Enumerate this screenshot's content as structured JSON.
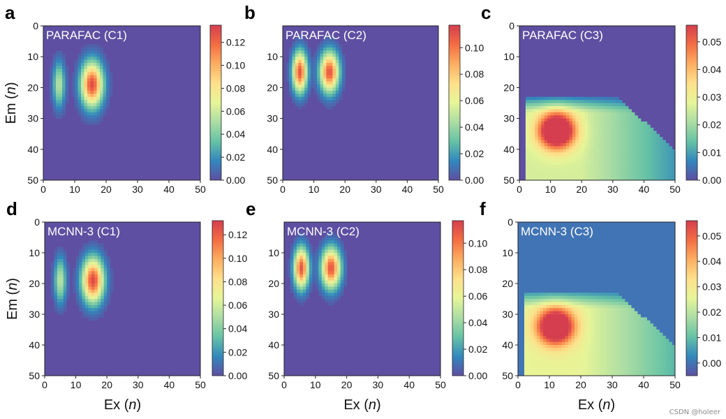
{
  "palette": [
    "#5e4fa2",
    "#3288bd",
    "#66c2a5",
    "#abdda4",
    "#e6f598",
    "#fee08b",
    "#fdae61",
    "#f46d43",
    "#d53e4f"
  ],
  "background_value_color": "#5e4fa2",
  "watermark": "CSDN @holeer",
  "chart_data": [
    {
      "type": "heatmap",
      "panel_label": "a",
      "title": "PARAFAC (C1)",
      "xlabel": "",
      "ylabel": "Em",
      "ylabel_var": "n",
      "xlim": [
        0,
        50
      ],
      "ylim": [
        0,
        50
      ],
      "x_ticks": [
        "0",
        "10",
        "20",
        "30",
        "40",
        "50"
      ],
      "y_ticks": [
        "0",
        "10",
        "20",
        "30",
        "40",
        "50"
      ],
      "colorbar": {
        "vmin": 0.0,
        "vmax": 0.135,
        "ticks": [
          "0.00",
          "0.02",
          "0.04",
          "0.06",
          "0.08",
          "0.10",
          "0.12"
        ]
      },
      "peaks": [
        {
          "ex": 5,
          "em": 19,
          "sx": 1.3,
          "sy": 5,
          "amp": 0.055
        },
        {
          "ex": 15.5,
          "em": 19,
          "sx": 2.4,
          "sy": 5,
          "amp": 0.13
        }
      ]
    },
    {
      "type": "heatmap",
      "panel_label": "b",
      "title": "PARAFAC (C2)",
      "xlabel": "",
      "ylabel": "",
      "ylabel_var": "",
      "xlim": [
        0,
        50
      ],
      "ylim": [
        0,
        50
      ],
      "x_ticks": [
        "0",
        "10",
        "20",
        "30",
        "40",
        "50"
      ],
      "y_ticks": [
        "10",
        "20",
        "30",
        "40",
        "50"
      ],
      "colorbar": {
        "vmin": 0.0,
        "vmax": 0.117,
        "ticks": [
          "0.00",
          "0.02",
          "0.04",
          "0.06",
          "0.08",
          "0.10"
        ]
      },
      "peaks": [
        {
          "ex": 5.5,
          "em": 15,
          "sx": 1.6,
          "sy": 4.5,
          "amp": 0.11
        },
        {
          "ex": 15,
          "em": 15,
          "sx": 2.1,
          "sy": 4.5,
          "amp": 0.11
        }
      ]
    },
    {
      "type": "heatmap",
      "panel_label": "c",
      "title": "PARAFAC (C3)",
      "xlabel": "",
      "ylabel": "",
      "ylabel_var": "",
      "xlim": [
        0,
        50
      ],
      "ylim": [
        0,
        50
      ],
      "x_ticks": [
        "0",
        "10",
        "20",
        "30",
        "40",
        "50"
      ],
      "y_ticks": [
        "0",
        "10",
        "20",
        "30",
        "40",
        "50"
      ],
      "colorbar": {
        "vmin": 0.0,
        "vmax": 0.056,
        "ticks": [
          "0.00",
          "0.01",
          "0.02",
          "0.03",
          "0.04",
          "0.05"
        ]
      },
      "peaks": [
        {
          "ex": 12,
          "em": 34,
          "sx": 4,
          "sy": 4,
          "amp": 0.055
        }
      ],
      "plateau": {
        "value": 0.026,
        "em_start": 22
      }
    },
    {
      "type": "heatmap",
      "panel_label": "d",
      "title": "MCNN-3 (C1)",
      "xlabel": "Ex",
      "xlabel_var": "n",
      "ylabel": "Em",
      "ylabel_var": "n",
      "xlim": [
        0,
        50
      ],
      "ylim": [
        0,
        50
      ],
      "x_ticks": [
        "0",
        "10",
        "20",
        "30",
        "40",
        "50"
      ],
      "y_ticks": [
        "0",
        "10",
        "20",
        "30",
        "40",
        "50"
      ],
      "colorbar": {
        "vmin": 0.0,
        "vmax": 0.132,
        "ticks": [
          "0.00",
          "0.02",
          "0.04",
          "0.06",
          "0.08",
          "0.10",
          "0.12"
        ]
      },
      "peaks": [
        {
          "ex": 5,
          "em": 19,
          "sx": 1.3,
          "sy": 5,
          "amp": 0.055
        },
        {
          "ex": 15.5,
          "em": 19,
          "sx": 2.4,
          "sy": 5,
          "amp": 0.128
        }
      ]
    },
    {
      "type": "heatmap",
      "panel_label": "e",
      "title": "MCNN-3 (C2)",
      "xlabel": "Ex",
      "xlabel_var": "n",
      "ylabel": "",
      "ylabel_var": "",
      "xlim": [
        0,
        50
      ],
      "ylim": [
        0,
        50
      ],
      "x_ticks": [
        "0",
        "10",
        "20",
        "30",
        "40",
        "50"
      ],
      "y_ticks": [
        "10",
        "20",
        "30",
        "40",
        "50"
      ],
      "colorbar": {
        "vmin": 0.0,
        "vmax": 0.117,
        "ticks": [
          "0.00",
          "0.02",
          "0.04",
          "0.06",
          "0.08",
          "0.10"
        ]
      },
      "peaks": [
        {
          "ex": 5.5,
          "em": 15,
          "sx": 1.6,
          "sy": 4.5,
          "amp": 0.11
        },
        {
          "ex": 15,
          "em": 15,
          "sx": 2.1,
          "sy": 4.5,
          "amp": 0.11
        }
      ]
    },
    {
      "type": "heatmap",
      "panel_label": "f",
      "title": "MCNN-3 (C3)",
      "xlabel": "Ex",
      "xlabel_var": "n",
      "ylabel": "",
      "ylabel_var": "",
      "xlim": [
        0,
        50
      ],
      "ylim": [
        0,
        50
      ],
      "x_ticks": [
        "0",
        "10",
        "20",
        "30",
        "40",
        "50"
      ],
      "y_ticks": [
        "0",
        "10",
        "20",
        "30",
        "40",
        "50"
      ],
      "colorbar": {
        "vmin": -0.005,
        "vmax": 0.056,
        "ticks": [
          "0.00",
          "0.01",
          "0.02",
          "0.03",
          "0.04",
          "0.05"
        ]
      },
      "peaks": [
        {
          "ex": 12,
          "em": 34,
          "sx": 4,
          "sy": 4,
          "amp": 0.054
        }
      ],
      "plateau": {
        "value": 0.026,
        "em_start": 22
      }
    }
  ]
}
